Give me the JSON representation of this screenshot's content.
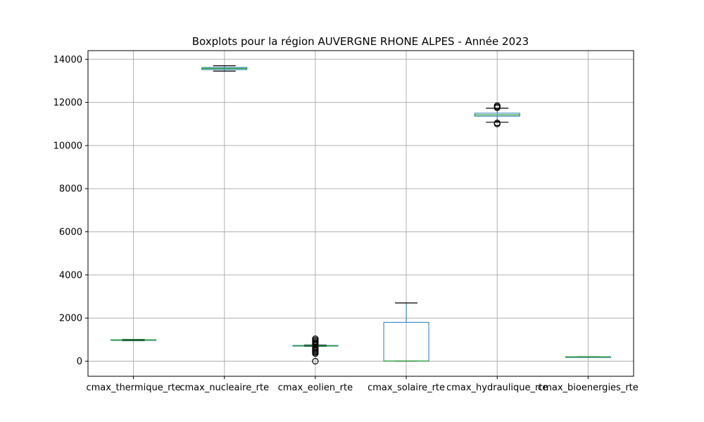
{
  "chart_data": {
    "type": "boxplot",
    "title": "Boxplots pour la région AUVERGNE RHONE ALPES - Année 2023",
    "xlabel": "",
    "ylabel": "",
    "ylim": [
      -700,
      14400
    ],
    "yticks": [
      0,
      2000,
      4000,
      6000,
      8000,
      10000,
      12000,
      14000
    ],
    "ytick_labels": [
      "0",
      "2000",
      "4000",
      "6000",
      "8000",
      "10000",
      "12000",
      "14000"
    ],
    "grid": true,
    "categories": [
      "cmax_thermique_rte",
      "cmax_nucleaire_rte",
      "cmax_eolien_rte",
      "cmax_solaire_rte",
      "cmax_hydraulique_rte",
      "cmax_bioenergies_rte"
    ],
    "boxes": [
      {
        "name": "cmax_thermique_rte",
        "whisker_low": 950,
        "q1": 970,
        "median": 985,
        "q3": 995,
        "whisker_high": 1010,
        "outliers": []
      },
      {
        "name": "cmax_nucleaire_rte",
        "whisker_low": 13450,
        "q1": 13520,
        "median": 13570,
        "q3": 13620,
        "whisker_high": 13700,
        "outliers": []
      },
      {
        "name": "cmax_eolien_rte",
        "whisker_low": 690,
        "q1": 700,
        "median": 715,
        "q3": 730,
        "whisker_high": 750,
        "outliers": [
          0,
          350,
          400,
          450,
          500,
          550,
          600,
          650,
          780,
          820,
          870,
          920,
          980,
          1040
        ]
      },
      {
        "name": "cmax_solaire_rte",
        "whisker_low": 0,
        "q1": 0,
        "median": 10,
        "q3": 1800,
        "whisker_high": 2700,
        "outliers": []
      },
      {
        "name": "cmax_hydraulique_rte",
        "whisker_low": 11080,
        "q1": 11360,
        "median": 11420,
        "q3": 11500,
        "whisker_high": 11730,
        "outliers": [
          11000,
          11050,
          11750,
          11800,
          11850
        ]
      },
      {
        "name": "cmax_bioenergies_rte",
        "whisker_low": 190,
        "q1": 195,
        "median": 200,
        "q3": 205,
        "whisker_high": 210,
        "outliers": []
      }
    ],
    "colors": {
      "box": "#1f77b4",
      "median": "#2ca02c",
      "whisker": "#000000",
      "grid": "#b0b0b0",
      "outlier": "#000000"
    }
  }
}
